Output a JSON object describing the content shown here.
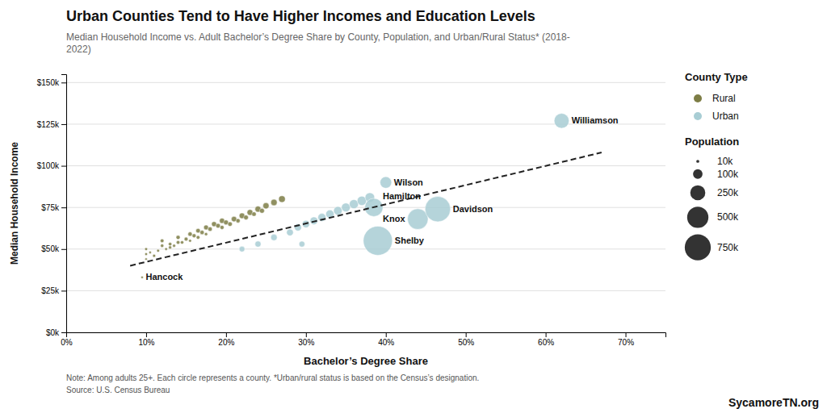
{
  "chart_data": {
    "type": "scatter",
    "title": "Urban Counties Tend to Have Higher Incomes and Education Levels",
    "subtitle": "Median Household Income vs. Adult Bachelor’s Degree Share by County, Population, and Urban/Rural Status* (2018-\n2022)",
    "xlabel": "Bachelor’s Degree Share",
    "ylabel": "Median Household Income",
    "note": "Note: Among adults 25+. Each circle represents a county. *Urban/rural status is based on the Census’s designation.",
    "source": "Source: U.S. Census Bureau",
    "watermark": "SycamoreTN.org",
    "legend_title": "County Type",
    "legend": "right",
    "series": [
      {
        "name": "Rural",
        "color": "#7d7d45",
        "x": [
          0.1,
          0.1,
          0.1,
          0.105,
          0.11,
          0.12,
          0.115,
          0.12,
          0.13,
          0.13,
          0.125,
          0.14,
          0.14,
          0.135,
          0.15,
          0.155,
          0.145,
          0.16,
          0.165,
          0.155,
          0.17,
          0.175,
          0.165,
          0.18,
          0.185,
          0.175,
          0.19,
          0.195,
          0.2,
          0.195,
          0.21,
          0.205,
          0.22,
          0.215,
          0.23,
          0.225,
          0.24,
          0.235,
          0.25,
          0.245,
          0.26,
          0.27,
          0.095
        ],
        "values": [
          47000,
          44000,
          50000,
          48000,
          46000,
          52000,
          49000,
          55000,
          51000,
          53000,
          50000,
          54000,
          57000,
          52000,
          56000,
          59000,
          54000,
          58000,
          61000,
          55000,
          60000,
          63000,
          57000,
          62000,
          65000,
          59000,
          64000,
          67000,
          66000,
          63000,
          68000,
          65000,
          70000,
          67000,
          72000,
          69000,
          74000,
          71000,
          76000,
          73000,
          78000,
          80000,
          33000
        ],
        "size": [
          8000,
          6000,
          9000,
          7000,
          10000,
          12000,
          9000,
          15000,
          11000,
          13000,
          8000,
          14000,
          18000,
          10000,
          16000,
          20000,
          12000,
          17000,
          22000,
          9000,
          19000,
          25000,
          14000,
          21000,
          28000,
          11000,
          23000,
          30000,
          26000,
          18000,
          32000,
          22000,
          35000,
          19000,
          38000,
          24000,
          40000,
          21000,
          42000,
          26000,
          45000,
          48000,
          6500
        ],
        "labels": [
          null,
          null,
          null,
          null,
          null,
          null,
          null,
          null,
          null,
          null,
          null,
          null,
          null,
          null,
          null,
          null,
          null,
          null,
          null,
          null,
          null,
          null,
          null,
          null,
          null,
          null,
          null,
          null,
          null,
          null,
          null,
          null,
          null,
          null,
          null,
          null,
          null,
          null,
          null,
          null,
          null,
          null,
          "Hancock"
        ]
      },
      {
        "name": "Urban",
        "color": "#a8cdd4",
        "x": [
          0.22,
          0.24,
          0.26,
          0.28,
          0.29,
          0.3,
          0.31,
          0.295,
          0.32,
          0.33,
          0.34,
          0.35,
          0.36,
          0.37,
          0.38,
          0.39,
          0.385,
          0.44,
          0.465,
          0.4,
          0.62
        ],
        "values": [
          50000,
          53000,
          57000,
          60000,
          63000,
          65000,
          67000,
          53000,
          69000,
          71000,
          73000,
          75000,
          77000,
          79000,
          81000,
          55000,
          75000,
          68000,
          74000,
          90000,
          127000
        ],
        "size": [
          35000,
          40000,
          45000,
          50000,
          55000,
          60000,
          65000,
          38000,
          70000,
          75000,
          80000,
          85000,
          90000,
          95000,
          100000,
          935000,
          366000,
          470000,
          715000,
          147000,
          247000
        ],
        "labels": [
          null,
          null,
          null,
          null,
          null,
          null,
          null,
          null,
          null,
          null,
          null,
          null,
          null,
          null,
          null,
          "Shelby",
          "Hamilton",
          "Knox",
          "Davidson",
          "Wilson",
          "Williamson"
        ]
      },
      {
        "type": "line",
        "color": "#222222",
        "line_style": "dashed",
        "x": [
          0.08,
          0.67
        ],
        "values": [
          40000,
          108000
        ]
      }
    ],
    "size_legend_title": "Population",
    "size_legend": [
      {
        "value": 10000,
        "label": "10k"
      },
      {
        "value": 100000,
        "label": "100k"
      },
      {
        "value": 250000,
        "label": "250k"
      },
      {
        "value": 500000,
        "label": "500k"
      },
      {
        "value": 750000,
        "label": "750k"
      }
    ],
    "xlim": [
      0.0,
      0.75
    ],
    "ylim": [
      0,
      155000
    ],
    "xticks": [
      {
        "value": 0.0,
        "label": "0%"
      },
      {
        "value": 0.1,
        "label": "10%"
      },
      {
        "value": 0.2,
        "label": "20%"
      },
      {
        "value": 0.3,
        "label": "30%"
      },
      {
        "value": 0.4,
        "label": "40%"
      },
      {
        "value": 0.5,
        "label": "50%"
      },
      {
        "value": 0.6,
        "label": "60%"
      },
      {
        "value": 0.7,
        "label": "70%"
      }
    ],
    "yticks": [
      {
        "value": 0,
        "label": "$0k"
      },
      {
        "value": 25000,
        "label": "$25k"
      },
      {
        "value": 50000,
        "label": "$50k"
      },
      {
        "value": 75000,
        "label": "$75k"
      },
      {
        "value": 100000,
        "label": "$100k"
      },
      {
        "value": 125000,
        "label": "$125k"
      },
      {
        "value": 150000,
        "label": "$150k"
      }
    ],
    "grid": "y"
  }
}
